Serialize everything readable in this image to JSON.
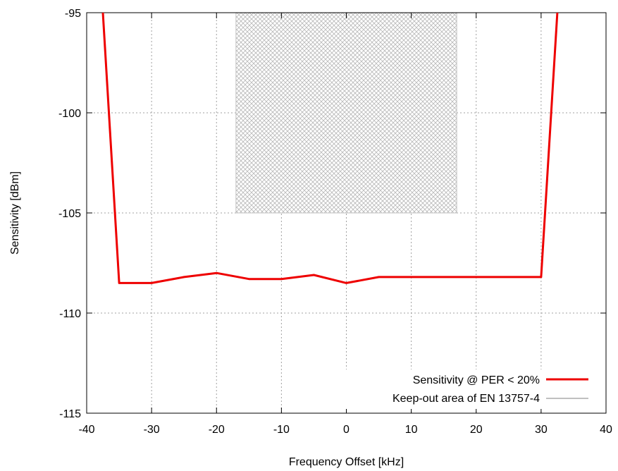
{
  "chart_data": {
    "type": "line",
    "title": "",
    "xlabel": "Frequency Offset [kHz]",
    "ylabel": "Sensitivity [dBm]",
    "xlim": [
      -40,
      40
    ],
    "ylim": [
      -115,
      -95
    ],
    "xticks": [
      -40,
      -30,
      -20,
      -10,
      0,
      10,
      20,
      30,
      40
    ],
    "yticks": [
      -115,
      -110,
      -105,
      -100,
      -95
    ],
    "xtick_labels": [
      "-40",
      "-30",
      "-20",
      "-10",
      "0",
      "10",
      "20",
      "30",
      "40"
    ],
    "ytick_labels": [
      "-115",
      "-110",
      "-105",
      "-100",
      "-95"
    ],
    "grid": true,
    "legend_position": "bottom-right",
    "series": [
      {
        "name": "Sensitivity @ PER < 20%",
        "color": "#ee0000",
        "x": [
          -37.5,
          -35,
          -30,
          -25,
          -20,
          -15,
          -10,
          -5,
          0,
          5,
          10,
          15,
          20,
          25,
          30,
          32.5
        ],
        "y": [
          -95,
          -108.5,
          -108.5,
          -108.2,
          -108.0,
          -108.3,
          -108.3,
          -108.1,
          -108.5,
          -108.2,
          -108.2,
          -108.2,
          -108.2,
          -108.2,
          -108.2,
          -95
        ]
      }
    ],
    "regions": [
      {
        "name": "Keep-out area of EN 13757-4",
        "color": "#c0c0c0",
        "x_range": [
          -17,
          17
        ],
        "y_range": [
          -105,
          -95
        ]
      }
    ]
  }
}
